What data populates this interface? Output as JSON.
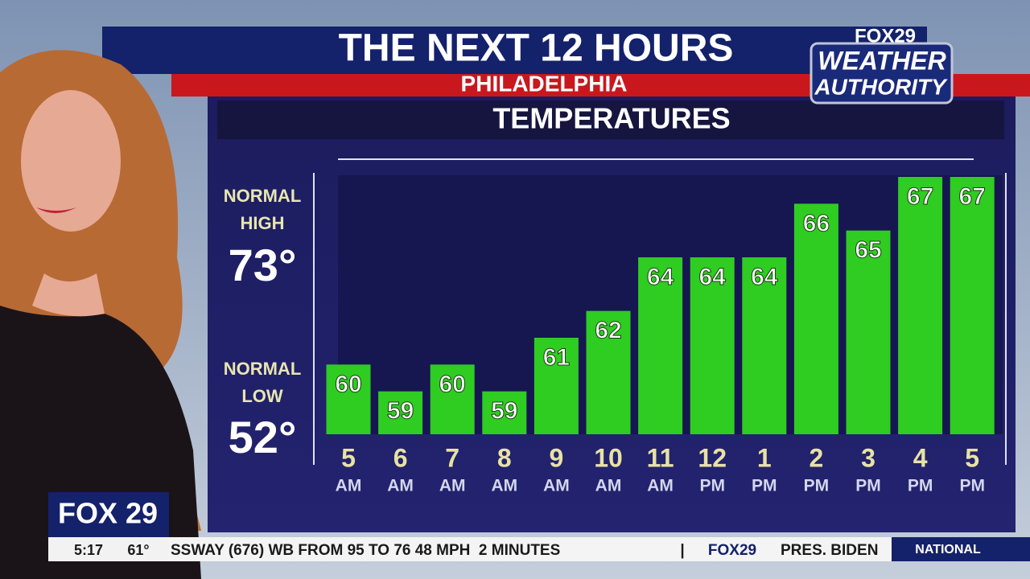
{
  "header": {
    "title": "THE NEXT 12 HOURS",
    "location": "PHILADELPHIA",
    "logo_top": "FOX29",
    "logo_middle": "WEATHER",
    "logo_bottom": "AUTHORITY"
  },
  "normals": {
    "high_line_1": "NORMAL",
    "high_line_2": "HIGH",
    "high": "73°",
    "low_line_1": "NORMAL",
    "low_line_2": "LOW",
    "low": "52°"
  },
  "chart_data": {
    "type": "bar",
    "title": "TEMPERATURES",
    "categories": [
      "5",
      "6",
      "7",
      "8",
      "9",
      "10",
      "11",
      "12",
      "1",
      "2",
      "3",
      "4",
      "5"
    ],
    "periods": [
      "AM",
      "AM",
      "AM",
      "AM",
      "AM",
      "AM",
      "AM",
      "PM",
      "PM",
      "PM",
      "PM",
      "PM",
      "PM"
    ],
    "values": [
      60,
      59,
      60,
      59,
      61,
      62,
      64,
      64,
      64,
      66,
      65,
      67,
      67
    ],
    "color": "#2fcc22",
    "ylim": [
      57.4,
      67
    ]
  },
  "footer": {
    "logo": "FOX 29",
    "time": "5:17",
    "temp": "61°",
    "ticker": "SSWAY (676) WB FROM 95 TO 76 48 MPH  2 MINUTES",
    "separator": "|",
    "ticker_logo": "FOX29",
    "ticker_next": "PRES. BIDEN",
    "section": "NATIONAL"
  }
}
